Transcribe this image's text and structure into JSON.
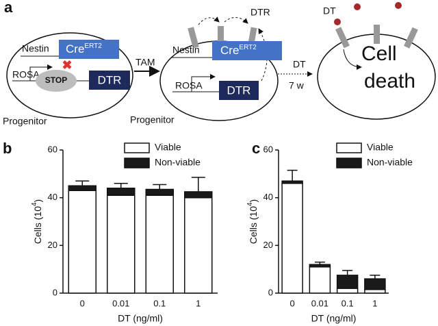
{
  "diagram": {
    "panel_label": "a",
    "cell1": {
      "nestin": "Nestin",
      "cre": "Cre",
      "cre_sup": "ERT2",
      "rosa": "ROSA",
      "stop": "STOP",
      "dtr": "DTR",
      "caption": "Progenitor"
    },
    "tam": "TAM",
    "cell2": {
      "nestin": "Nestin",
      "cre": "Cre",
      "cre_sup": "ERT2",
      "rosa": "ROSA",
      "dtr": "DTR",
      "caption": "Progenitor",
      "receptor": "DTR"
    },
    "treatment": {
      "drug": "DT",
      "time": "7 w"
    },
    "cell3": {
      "ligand": "DT",
      "line1": "Cell",
      "line2": "death"
    }
  },
  "chart_data": [
    {
      "type": "bar",
      "panel_label": "b",
      "stacked": true,
      "categories": [
        "0",
        "0.01",
        "0.1",
        "1"
      ],
      "xlabel": "DT (ng/ml)",
      "ylabel": [
        "Cells (10",
        "4",
        ")"
      ],
      "ylim": [
        0,
        60
      ],
      "yticks": [
        0,
        20,
        40,
        60
      ],
      "legend": "top-right",
      "series": [
        {
          "name": "Viable",
          "color": "#ffffff",
          "values": [
            43,
            41,
            41,
            40
          ]
        },
        {
          "name": "Non-viable",
          "color": "#1a1a1a",
          "values": [
            2,
            3,
            2.5,
            2.5
          ],
          "errors": [
            2,
            2,
            2,
            6
          ]
        }
      ]
    },
    {
      "type": "bar",
      "panel_label": "c",
      "stacked": true,
      "categories": [
        "0",
        "0.01",
        "0.1",
        "1"
      ],
      "xlabel": "DT (ng/ml)",
      "ylabel": [
        "Cells (10",
        "4",
        ")"
      ],
      "ylim": [
        0,
        60
      ],
      "yticks": [
        0,
        20,
        40,
        60
      ],
      "legend": "top-right",
      "series": [
        {
          "name": "Viable",
          "color": "#ffffff",
          "values": [
            46,
            11,
            2,
            1.5
          ]
        },
        {
          "name": "Non-viable",
          "color": "#1a1a1a",
          "values": [
            1,
            1,
            5.5,
            4.5
          ],
          "errors": [
            4.5,
            1,
            2,
            1.5
          ]
        }
      ]
    }
  ]
}
